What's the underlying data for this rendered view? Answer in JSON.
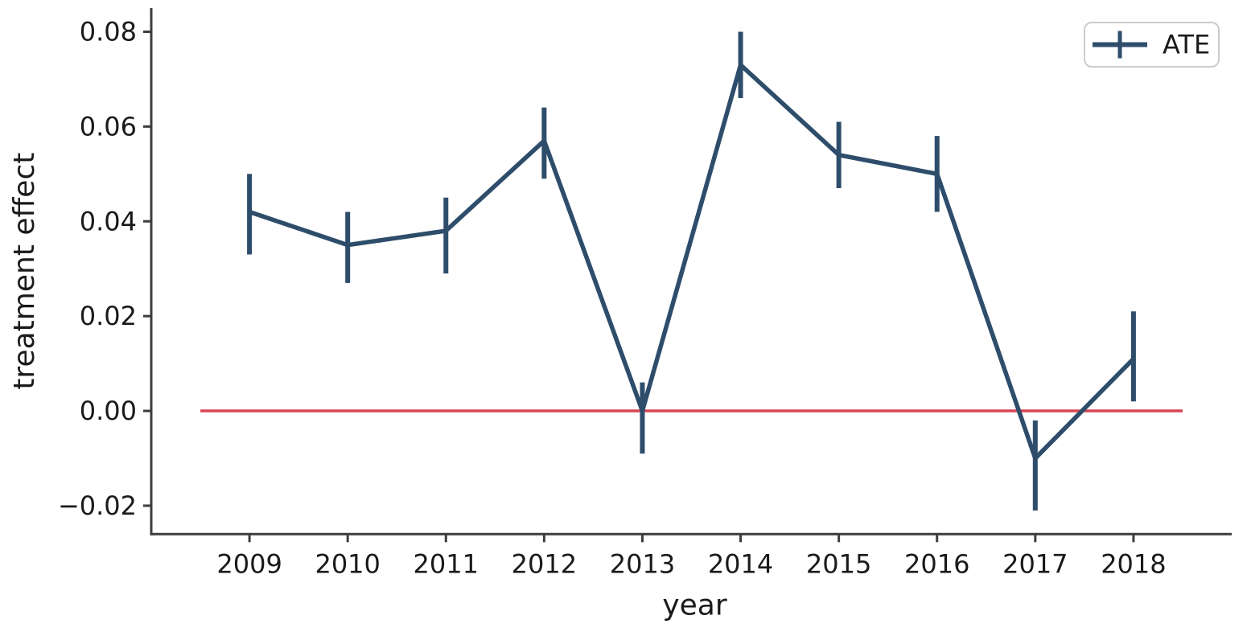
{
  "figure": {
    "background": "#ffffff"
  },
  "chart_data": {
    "type": "line",
    "title": "",
    "xlabel": "year",
    "ylabel": "treatment effect",
    "x": [
      2009,
      2010,
      2011,
      2012,
      2013,
      2014,
      2015,
      2016,
      2017,
      2018
    ],
    "series": [
      {
        "name": "ATE",
        "values": [
          0.042,
          0.035,
          0.038,
          0.057,
          0.0,
          0.073,
          0.054,
          0.05,
          -0.01,
          0.011
        ],
        "ci_low": [
          0.033,
          0.027,
          0.029,
          0.049,
          -0.009,
          0.066,
          0.047,
          0.042,
          -0.021,
          0.002
        ],
        "ci_high": [
          0.05,
          0.042,
          0.045,
          0.064,
          0.006,
          0.08,
          0.061,
          0.058,
          -0.002,
          0.021
        ]
      }
    ],
    "reference_line": {
      "y": 0.0,
      "x_start": 2008.5,
      "x_end": 2018.5
    },
    "xlim": [
      2008.0,
      2019.0
    ],
    "ylim": [
      -0.026,
      0.085
    ],
    "xticks": [
      2009,
      2010,
      2011,
      2012,
      2013,
      2014,
      2015,
      2016,
      2017,
      2018
    ],
    "xtick_labels": [
      "2009",
      "2010",
      "2011",
      "2012",
      "2013",
      "2014",
      "2015",
      "2016",
      "2017",
      "2018"
    ],
    "yticks": [
      -0.02,
      0.0,
      0.02,
      0.04,
      0.06,
      0.08
    ],
    "ytick_labels": [
      "−0.02",
      "0.00",
      "0.02",
      "0.04",
      "0.06",
      "0.08"
    ],
    "legend": {
      "position": "upper right",
      "entries": [
        "ATE"
      ]
    },
    "grid": false,
    "colors": {
      "line": "#2e4d6b",
      "zero_line": "#d94556",
      "axis": "#3d3d3d",
      "text": "#1a1a1a",
      "legend_border": "#cccccc",
      "legend_bg": "#ffffff"
    }
  }
}
